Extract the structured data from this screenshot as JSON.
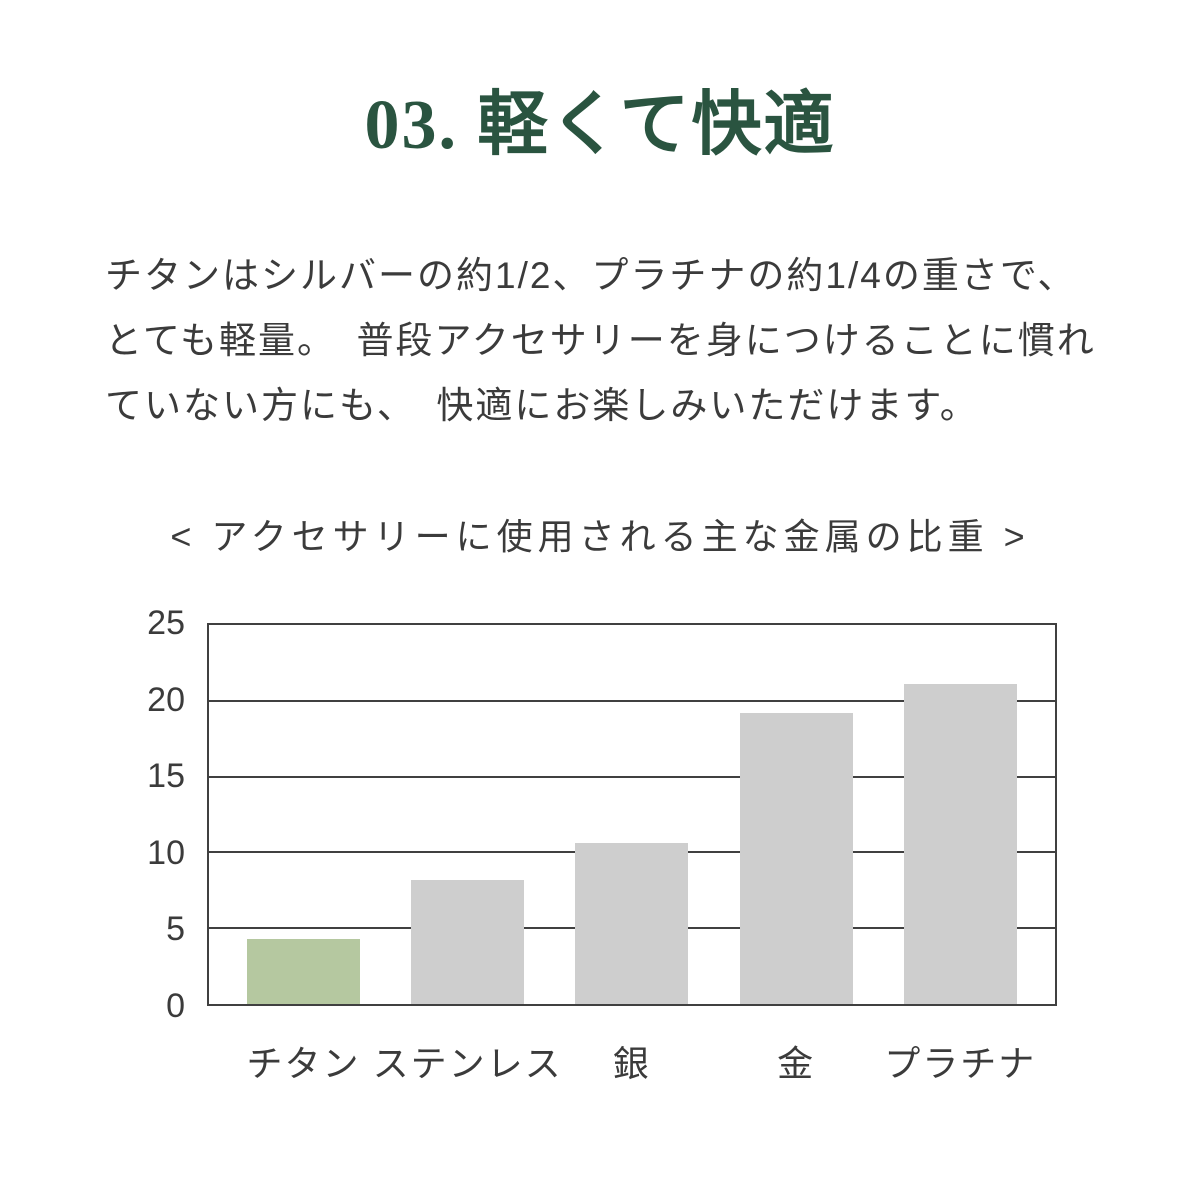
{
  "title": {
    "text": "03. 軽くて快適",
    "color": "#2a5440"
  },
  "paragraph": {
    "lines": [
      "チタンはシルバーの約1/2、プラチナの約1/4の重さで、",
      "とても軽量。　普段アクセサリーを身につけることに慣れ",
      "ていない方にも、　快適にお楽しみいただけます。"
    ]
  },
  "chart_data": {
    "type": "bar",
    "title": "< アクセサリーに使用される主な金属の比重 >",
    "categories": [
      "チタン",
      "ステンレス",
      "銀",
      "金",
      "プラチナ"
    ],
    "values": [
      4.3,
      8.2,
      10.6,
      19.2,
      21.1
    ],
    "ylim": [
      0,
      25
    ],
    "yticks": [
      0,
      5,
      10,
      15,
      20,
      25
    ],
    "grid": true,
    "legend_position": "none",
    "highlight_index": 0,
    "colors": {
      "highlight_bar": "#b5c8a0",
      "default_bar": "#cecece",
      "axis": "#404040",
      "text": "#3b3b3b"
    }
  }
}
